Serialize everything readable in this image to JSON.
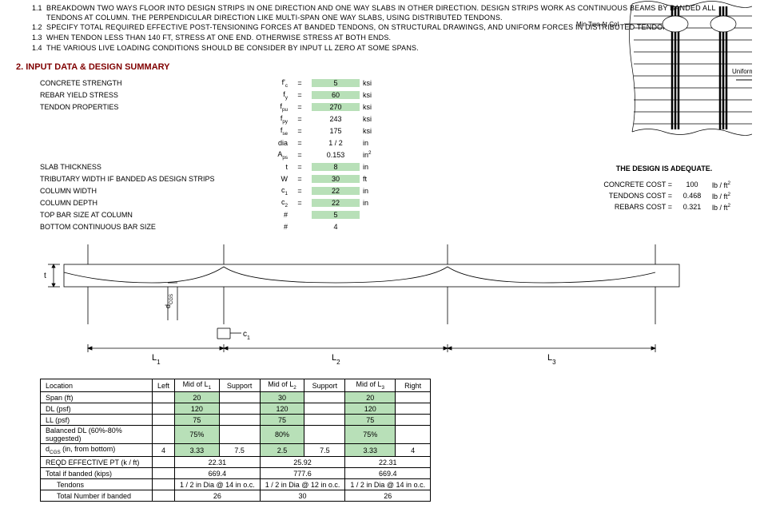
{
  "notes": [
    {
      "n": "1.1",
      "t": "BREAKDOWN TWO WAYS FLOOR INTO DESIGN STRIPS IN ONE DIRECTION AND ONE WAY SLABS IN OTHER DIRECTION. DESIGN STRIPS WORK AS CONTINUOUS BEAMS BY BANDED ALL TENDONS AT COLUMN. THE PERPENDICULAR DIRECTION LIKE MULTI-SPAN ONE WAY SLABS, USING DISTRIBUTED TENDONS."
    },
    {
      "n": "1.2",
      "t": "SPECIFY TOTAL REQUIRED EFFECTIVE POST-TENSIONING FORCES AT BANDED TENDONS, ON STRUCTURAL DRAWINGS, AND UNIFORM FORCES IN DISTRIBUTED TENDONS."
    },
    {
      "n": "1.3",
      "t": "WHEN TENDON LESS THAN 140 FT, STRESS AT ONE END. OTHERWISE STRESS AT BOTH ENDS."
    },
    {
      "n": "1.4",
      "t": "THE VARIOUS LIVE LOADING CONDITIONS SHOULD BE CONSIDER BY INPUT LL ZERO AT SOME SPANS."
    }
  ],
  "sectionTitle": "2. INPUT DATA & DESIGN SUMMARY",
  "inputs": [
    {
      "label": "CONCRETE STRENGTH",
      "sym": "f'<sub>c</sub>",
      "val": "5",
      "unit": "ksi",
      "hl": true
    },
    {
      "label": "REBAR YIELD STRESS",
      "sym": "f<sub>y</sub>",
      "val": "60",
      "unit": "ksi",
      "hl": true
    },
    {
      "label": "TENDON PROPERTIES",
      "sym": "f<sub>pu</sub>",
      "val": "270",
      "unit": "ksi",
      "hl": true
    },
    {
      "label": "",
      "sym": "f<sub>py</sub>",
      "val": "243",
      "unit": "ksi",
      "hl": false
    },
    {
      "label": "",
      "sym": "f<sub>se</sub>",
      "val": "175",
      "unit": "ksi",
      "hl": false
    },
    {
      "label": "",
      "sym": "dia",
      "val": "1 / 2",
      "unit": "in",
      "hl": false
    },
    {
      "label": "",
      "sym": "A<sub>ps</sub>",
      "val": "0.153",
      "unit": "in<sup>2</sup>",
      "hl": false
    },
    {
      "label": "SLAB THICKNESS",
      "sym": "t",
      "val": "8",
      "unit": "in",
      "hl": true
    },
    {
      "label": "TRIBUTARY WIDTH IF BANDED AS DESIGN STRIPS",
      "sym": "W",
      "val": "30",
      "unit": "ft",
      "hl": true
    },
    {
      "label": "COLUMN WIDTH",
      "sym": "c<sub>1</sub>",
      "val": "22",
      "unit": "in",
      "hl": true
    },
    {
      "label": "COLUMN DEPTH",
      "sym": "c<sub>2</sub>",
      "val": "22",
      "unit": "in",
      "hl": true
    },
    {
      "label": "TOP BAR SIZE AT COLUMN",
      "sym": "#",
      "val": "5",
      "unit": "",
      "hl": true,
      "noeq": true
    },
    {
      "label": "BOTTOM CONTINUOUS BAR SIZE",
      "sym": "#",
      "val": "4",
      "unit": "",
      "hl": false,
      "noeq": true
    }
  ],
  "designStatus": "THE DESIGN IS ADEQUATE.",
  "costs": [
    {
      "label": "CONCRETE COST =",
      "val": "100",
      "unit": "lb / ft<sup>2</sup>"
    },
    {
      "label": "TENDONS COST =",
      "val": "0.468",
      "unit": "lb / ft<sup>2</sup>"
    },
    {
      "label": "REBARS COST =",
      "val": "0.321",
      "unit": "lb / ft<sup>2</sup>"
    }
  ],
  "diagramLabels": {
    "minTwo": "Min Two At Col",
    "uniform": "Uniform Tendons",
    "t": "t",
    "dcgs": "d<sub>CGS</sub>",
    "c1": "c<sub>1</sub>",
    "L1": "L<sub>1</sub>",
    "L2": "L<sub>2</sub>",
    "L3": "L<sub>3</sub>"
  },
  "table": {
    "headers": [
      "Location",
      "Left",
      "Mid of L<sub>1</sub>",
      "Support",
      "Mid of L<sub>2</sub>",
      "Support",
      "Mid of L<sub>3</sub>",
      "Right"
    ],
    "rows": [
      {
        "lbl": "Span (ft)",
        "cells": [
          "",
          "20",
          "",
          "30",
          "",
          "20",
          ""
        ],
        "hl": [
          2,
          4,
          6
        ]
      },
      {
        "lbl": "DL (psf)",
        "cells": [
          "",
          "120",
          "",
          "120",
          "",
          "120",
          ""
        ],
        "hl": [
          2,
          4,
          6
        ]
      },
      {
        "lbl": "LL (psf)",
        "cells": [
          "",
          "75",
          "",
          "75",
          "",
          "75",
          ""
        ],
        "hl": [
          2,
          4,
          6
        ]
      },
      {
        "lbl": "Balanced DL (60%-80% suggested)",
        "cells": [
          "",
          "75%",
          "",
          "80%",
          "",
          "75%",
          ""
        ],
        "hl": [
          2,
          4,
          6
        ]
      },
      {
        "lbl": "d<sub>CGS</sub> (in, from bottom)",
        "cells": [
          "4",
          "3.33",
          "7.5",
          "2.5",
          "7.5",
          "3.33",
          "4"
        ],
        "hl": [
          2,
          4,
          6
        ]
      },
      {
        "lbl": "REQD EFFECTIVE PT (k / ft)",
        "cells": [
          "",
          "22.31",
          "",
          "25.92",
          "",
          "22.31",
          ""
        ],
        "span": true
      },
      {
        "lbl": "Total if banded (kips)",
        "cells": [
          "",
          "669.4",
          "",
          "777.6",
          "",
          "669.4",
          ""
        ],
        "span": true
      },
      {
        "lbl": "Tendons",
        "cells": [
          "",
          "1 / 2 in Dia @ 14 in o.c.",
          "",
          "1 / 2 in Dia @ 12 in o.c.",
          "",
          "1 / 2 in Dia @ 14 in o.c.",
          ""
        ],
        "span": true,
        "indent": true
      },
      {
        "lbl": "Total Number if banded",
        "cells": [
          "",
          "26",
          "",
          "30",
          "",
          "26",
          ""
        ],
        "span": true,
        "indent": true
      }
    ]
  }
}
